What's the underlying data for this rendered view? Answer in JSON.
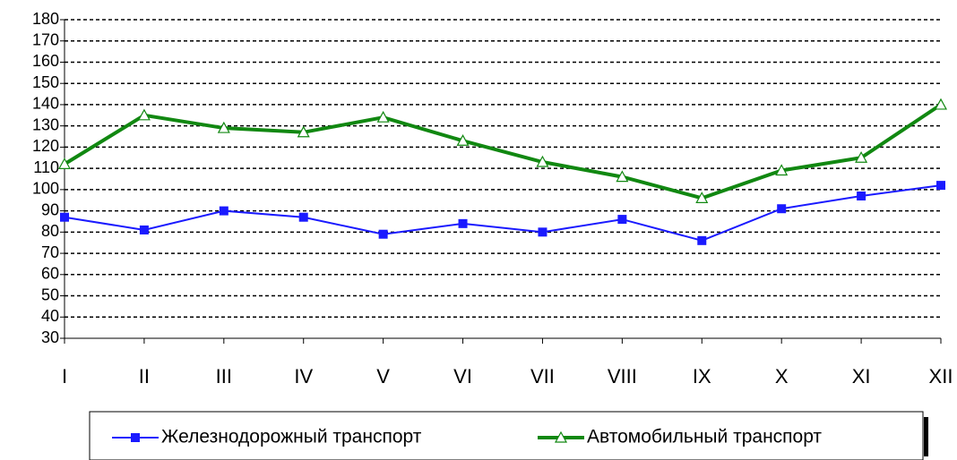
{
  "chart_data": {
    "type": "line",
    "categories": [
      "I",
      "II",
      "III",
      "IV",
      "V",
      "VI",
      "VII",
      "VIII",
      "IX",
      "X",
      "XI",
      "XII"
    ],
    "series": [
      {
        "name": "Железнодорожный транспорт",
        "color": "#1a1aff",
        "values": [
          87,
          81,
          90,
          87,
          79,
          84,
          80,
          86,
          76,
          91,
          97,
          102
        ]
      },
      {
        "name": "Автомобильный транспорт",
        "color": "#118811",
        "values": [
          112,
          135,
          129,
          127,
          134,
          123,
          113,
          106,
          96,
          109,
          115,
          140
        ]
      }
    ],
    "ylim": [
      30,
      180
    ],
    "yticks": [
      30,
      40,
      50,
      60,
      70,
      80,
      90,
      100,
      110,
      120,
      130,
      140,
      150,
      160,
      170,
      180
    ],
    "grid": true,
    "legend": "bottom"
  }
}
